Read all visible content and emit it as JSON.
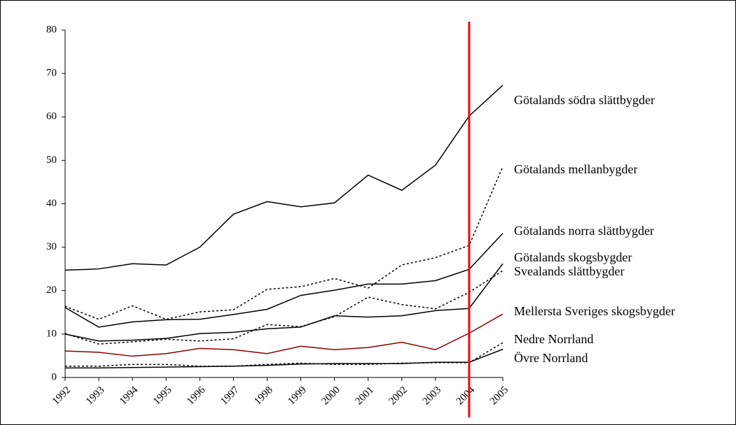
{
  "chart_data": {
    "type": "line",
    "categories": [
      "1992",
      "1993",
      "1994",
      "1995",
      "1996",
      "1997",
      "1998",
      "1999",
      "2000",
      "2001",
      "2002",
      "2003",
      "2004",
      "2005"
    ],
    "series": [
      {
        "name": "Götalands södra slättbygder",
        "color": "#000000",
        "dash": false,
        "values": [
          24.7,
          25,
          26.2,
          25.9,
          30,
          37.6,
          40.5,
          39.3,
          40.2,
          46.6,
          43.1,
          48.9,
          60.2,
          67.3
        ]
      },
      {
        "name": "Götalands mellanbygder",
        "color": "#000000",
        "dash": true,
        "values": [
          16.4,
          13.4,
          16.5,
          13.4,
          15.1,
          15.6,
          20.3,
          20.9,
          22.8,
          20.6,
          25.9,
          27.6,
          30.4,
          48.6
        ]
      },
      {
        "name": "Götalands norra slättbygder",
        "color": "#000000",
        "dash": false,
        "values": [
          16.1,
          11.6,
          12.8,
          13.3,
          13.4,
          14.5,
          15.7,
          18.9,
          20.1,
          21.5,
          21.5,
          22.3,
          24.9,
          33.2
        ]
      },
      {
        "name": "Götalands skogsbygder",
        "color": "#000000",
        "dash": true,
        "values": [
          10.1,
          7.7,
          8.2,
          8.8,
          8.4,
          8.9,
          12.2,
          11.7,
          14,
          18.5,
          16.8,
          15.8,
          19.6,
          24.6
        ]
      },
      {
        "name": "Svealands slättbygder",
        "color": "#000000",
        "dash": false,
        "values": [
          10,
          8.4,
          8.6,
          9,
          10.1,
          10.4,
          11.2,
          11.6,
          14.2,
          13.9,
          14.2,
          15.4,
          15.9,
          26.2
        ]
      },
      {
        "name": "Mellersta Sveriges skogsbygder",
        "color": "#8b0000",
        "dash": false,
        "values": [
          6.1,
          5.8,
          4.9,
          5.5,
          6.7,
          6.4,
          5.5,
          7.2,
          6.4,
          6.9,
          8.1,
          6.4,
          10.2,
          14.6
        ]
      },
      {
        "name": "Nedre Norrland",
        "color": "#000000",
        "dash": true,
        "values": [
          2.6,
          2.6,
          3,
          3,
          2.6,
          2.6,
          3,
          3.3,
          3,
          3,
          3.3,
          3.4,
          3.4,
          8
        ]
      },
      {
        "name": "Övre Norrland",
        "color": "#000000",
        "dash": false,
        "values": [
          2.2,
          2.2,
          2.3,
          2.4,
          2.5,
          2.6,
          2.8,
          3.1,
          3.2,
          3.2,
          3.2,
          3.5,
          3.5,
          6.5
        ]
      }
    ],
    "ylim": [
      0,
      80
    ],
    "yticks": [
      0,
      10,
      20,
      30,
      40,
      50,
      60,
      70,
      80
    ],
    "vline_category": "2004",
    "vline_color": "#ff0000"
  }
}
